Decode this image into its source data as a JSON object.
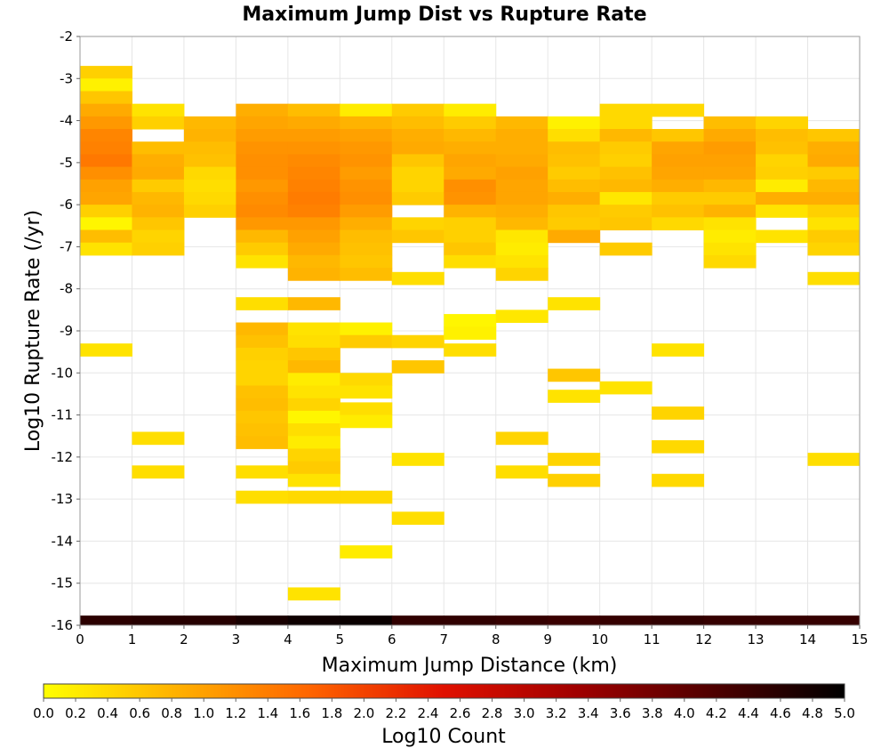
{
  "chart_data": {
    "type": "heatmap",
    "title": "Maximum Jump Dist vs Rupture Rate",
    "xlabel": "Maximum Jump Distance (km)",
    "ylabel": "Log10 Rupture Rate (/yr)",
    "xlim": [
      0,
      15
    ],
    "ylim": [
      -16,
      -2
    ],
    "x_ticks": [
      "0",
      "1",
      "2",
      "3",
      "4",
      "5",
      "6",
      "7",
      "8",
      "9",
      "10",
      "11",
      "12",
      "13",
      "14",
      "15"
    ],
    "y_ticks": [
      "-2",
      "-3",
      "-4",
      "-5",
      "-6",
      "-7",
      "-8",
      "-9",
      "-10",
      "-11",
      "-12",
      "-13",
      "-14",
      "-15",
      "-16"
    ],
    "x_bin_width": 1,
    "y_bin_height": 0.3,
    "grid": true,
    "colorbar": {
      "label": "Log10 Count",
      "range": [
        0,
        5
      ],
      "ticks": [
        "0.0",
        "0.2",
        "0.4",
        "0.6",
        "0.8",
        "1.0",
        "1.2",
        "1.4",
        "1.6",
        "1.8",
        "2.0",
        "2.2",
        "2.4",
        "2.6",
        "2.8",
        "3.0",
        "3.2",
        "3.4",
        "3.6",
        "3.8",
        "4.0",
        "4.2",
        "4.4",
        "4.6",
        "4.8",
        "5.0"
      ],
      "colors": [
        "#ffff00",
        "#ffb000",
        "#ff6400",
        "#e01000",
        "#a00000",
        "#500000",
        "#000000"
      ],
      "placement": "bottom"
    },
    "bottom_row": {
      "y_center": -15.92,
      "segments": [
        {
          "x": [
            0,
            1
          ],
          "value": 4.55
        },
        {
          "x": [
            1,
            2
          ],
          "value": 4.6
        },
        {
          "x": [
            2,
            3
          ],
          "value": 4.6
        },
        {
          "x": [
            3,
            4
          ],
          "value": 4.75
        },
        {
          "x": [
            4,
            5
          ],
          "value": 4.85
        },
        {
          "x": [
            5,
            6
          ],
          "value": 4.9
        },
        {
          "x": [
            6,
            7
          ],
          "value": 4.5
        },
        {
          "x": [
            7,
            8
          ],
          "value": 4.5
        },
        {
          "x": [
            8,
            9
          ],
          "value": 4.45
        },
        {
          "x": [
            9,
            10
          ],
          "value": 4.4
        },
        {
          "x": [
            10,
            11
          ],
          "value": 4.45
        },
        {
          "x": [
            11,
            12
          ],
          "value": 4.5
        },
        {
          "x": [
            12,
            13
          ],
          "value": 4.45
        },
        {
          "x": [
            13,
            14
          ],
          "value": 4.45
        },
        {
          "x": [
            14,
            15
          ],
          "value": 4.45
        }
      ]
    },
    "cells": [
      [
        0.5,
        -2.85,
        0.5
      ],
      [
        0.5,
        -3.15,
        0.15
      ],
      [
        0.5,
        -3.45,
        0.6
      ],
      [
        0.5,
        -3.75,
        0.9
      ],
      [
        0.5,
        -4.05,
        1.1
      ],
      [
        0.5,
        -4.35,
        1.3
      ],
      [
        0.5,
        -4.65,
        1.35
      ],
      [
        0.5,
        -4.95,
        1.45
      ],
      [
        0.5,
        -5.25,
        1.2
      ],
      [
        0.5,
        -5.55,
        1.0
      ],
      [
        0.5,
        -5.85,
        0.95
      ],
      [
        0.5,
        -6.15,
        0.5
      ],
      [
        0.5,
        -6.45,
        0.1
      ],
      [
        0.5,
        -6.75,
        0.7
      ],
      [
        0.5,
        -7.05,
        0.3
      ],
      [
        0.5,
        -9.45,
        0.3
      ],
      [
        1.5,
        -3.75,
        0.3
      ],
      [
        1.5,
        -4.05,
        0.5
      ],
      [
        1.5,
        -4.65,
        0.7
      ],
      [
        1.5,
        -4.95,
        0.85
      ],
      [
        1.5,
        -5.25,
        0.9
      ],
      [
        1.5,
        -5.55,
        0.55
      ],
      [
        1.5,
        -5.85,
        0.75
      ],
      [
        1.5,
        -6.15,
        0.8
      ],
      [
        1.5,
        -6.45,
        0.6
      ],
      [
        1.5,
        -6.75,
        0.45
      ],
      [
        1.5,
        -7.05,
        0.5
      ],
      [
        1.5,
        -11.55,
        0.35
      ],
      [
        1.5,
        -12.35,
        0.35
      ],
      [
        2.5,
        -4.05,
        0.75
      ],
      [
        2.5,
        -4.35,
        0.8
      ],
      [
        2.5,
        -4.65,
        0.7
      ],
      [
        2.5,
        -4.95,
        0.65
      ],
      [
        2.5,
        -5.25,
        0.4
      ],
      [
        2.5,
        -5.55,
        0.35
      ],
      [
        2.5,
        -5.85,
        0.4
      ],
      [
        2.5,
        -6.15,
        0.5
      ],
      [
        3.5,
        -3.75,
        0.85
      ],
      [
        3.5,
        -4.05,
        0.95
      ],
      [
        3.5,
        -4.35,
        1.05
      ],
      [
        3.5,
        -4.65,
        1.15
      ],
      [
        3.5,
        -4.95,
        1.2
      ],
      [
        3.5,
        -5.25,
        1.2
      ],
      [
        3.5,
        -5.55,
        1.1
      ],
      [
        3.5,
        -5.85,
        1.2
      ],
      [
        3.5,
        -6.15,
        1.25
      ],
      [
        3.5,
        -6.45,
        1.1
      ],
      [
        3.5,
        -6.75,
        0.75
      ],
      [
        3.5,
        -7.05,
        0.55
      ],
      [
        3.5,
        -7.35,
        0.3
      ],
      [
        3.5,
        -8.35,
        0.35
      ],
      [
        3.5,
        -8.95,
        0.75
      ],
      [
        3.5,
        -9.25,
        0.65
      ],
      [
        3.5,
        -9.55,
        0.5
      ],
      [
        3.5,
        -9.85,
        0.45
      ],
      [
        3.5,
        -10.15,
        0.45
      ],
      [
        3.5,
        -10.45,
        0.65
      ],
      [
        3.5,
        -10.75,
        0.7
      ],
      [
        3.5,
        -11.05,
        0.6
      ],
      [
        3.5,
        -11.35,
        0.65
      ],
      [
        3.5,
        -11.65,
        0.7
      ],
      [
        3.5,
        -12.35,
        0.35
      ],
      [
        3.5,
        -12.95,
        0.35
      ],
      [
        4.5,
        -3.75,
        0.7
      ],
      [
        4.5,
        -4.05,
        0.9
      ],
      [
        4.5,
        -4.35,
        1.05
      ],
      [
        4.5,
        -4.65,
        1.15
      ],
      [
        4.5,
        -4.95,
        1.25
      ],
      [
        4.5,
        -5.25,
        1.3
      ],
      [
        4.5,
        -5.55,
        1.35
      ],
      [
        4.5,
        -5.85,
        1.4
      ],
      [
        4.5,
        -6.15,
        1.35
      ],
      [
        4.5,
        -6.45,
        1.1
      ],
      [
        4.5,
        -6.75,
        1.0
      ],
      [
        4.5,
        -7.05,
        0.9
      ],
      [
        4.5,
        -7.35,
        0.75
      ],
      [
        4.5,
        -7.65,
        0.8
      ],
      [
        4.5,
        -8.35,
        0.75
      ],
      [
        4.5,
        -8.95,
        0.3
      ],
      [
        4.5,
        -9.25,
        0.35
      ],
      [
        4.5,
        -9.55,
        0.6
      ],
      [
        4.5,
        -9.85,
        0.75
      ],
      [
        4.5,
        -10.15,
        0.2
      ],
      [
        4.5,
        -10.45,
        0.3
      ],
      [
        4.5,
        -10.75,
        0.45
      ],
      [
        4.5,
        -11.05,
        0.1
      ],
      [
        4.5,
        -11.35,
        0.35
      ],
      [
        4.5,
        -11.65,
        0.2
      ],
      [
        4.5,
        -11.95,
        0.45
      ],
      [
        4.5,
        -12.25,
        0.55
      ],
      [
        4.5,
        -12.55,
        0.3
      ],
      [
        4.5,
        -12.95,
        0.4
      ],
      [
        4.5,
        -15.25,
        0.3
      ],
      [
        5.5,
        -3.75,
        0.2
      ],
      [
        5.5,
        -4.05,
        0.8
      ],
      [
        5.5,
        -4.35,
        1.0
      ],
      [
        5.5,
        -4.65,
        1.1
      ],
      [
        5.5,
        -4.95,
        1.15
      ],
      [
        5.5,
        -5.25,
        1.05
      ],
      [
        5.5,
        -5.55,
        1.15
      ],
      [
        5.5,
        -5.85,
        1.2
      ],
      [
        5.5,
        -6.15,
        1.05
      ],
      [
        5.5,
        -6.45,
        0.85
      ],
      [
        5.5,
        -6.75,
        0.7
      ],
      [
        5.5,
        -7.05,
        0.65
      ],
      [
        5.5,
        -7.35,
        0.6
      ],
      [
        5.5,
        -7.65,
        0.7
      ],
      [
        5.5,
        -8.95,
        0.15
      ],
      [
        5.5,
        -9.25,
        0.55
      ],
      [
        5.5,
        -10.15,
        0.4
      ],
      [
        5.5,
        -10.45,
        0.3
      ],
      [
        5.5,
        -10.85,
        0.35
      ],
      [
        5.5,
        -11.15,
        0.2
      ],
      [
        5.5,
        -12.95,
        0.4
      ],
      [
        5.5,
        -14.25,
        0.2
      ],
      [
        6.5,
        -3.75,
        0.55
      ],
      [
        6.5,
        -4.05,
        0.7
      ],
      [
        6.5,
        -4.35,
        0.85
      ],
      [
        6.5,
        -4.65,
        0.9
      ],
      [
        6.5,
        -4.95,
        0.6
      ],
      [
        6.5,
        -5.25,
        0.45
      ],
      [
        6.5,
        -5.55,
        0.45
      ],
      [
        6.5,
        -5.85,
        0.55
      ],
      [
        6.5,
        -6.45,
        0.45
      ],
      [
        6.5,
        -6.75,
        0.6
      ],
      [
        6.5,
        -7.75,
        0.35
      ],
      [
        6.5,
        -9.25,
        0.45
      ],
      [
        6.5,
        -9.85,
        0.6
      ],
      [
        6.5,
        -12.05,
        0.3
      ],
      [
        6.5,
        -13.45,
        0.35
      ],
      [
        7.5,
        -3.75,
        0.2
      ],
      [
        7.5,
        -4.05,
        0.55
      ],
      [
        7.5,
        -4.35,
        0.75
      ],
      [
        7.5,
        -4.65,
        0.85
      ],
      [
        7.5,
        -4.95,
        0.95
      ],
      [
        7.5,
        -5.25,
        0.9
      ],
      [
        7.5,
        -5.55,
        1.2
      ],
      [
        7.5,
        -5.85,
        1.15
      ],
      [
        7.5,
        -6.15,
        0.8
      ],
      [
        7.5,
        -6.45,
        0.5
      ],
      [
        7.5,
        -6.75,
        0.5
      ],
      [
        7.5,
        -7.05,
        0.6
      ],
      [
        7.5,
        -7.35,
        0.35
      ],
      [
        7.5,
        -8.75,
        0.1
      ],
      [
        7.5,
        -9.05,
        0.15
      ],
      [
        7.5,
        -9.45,
        0.35
      ],
      [
        8.5,
        -4.05,
        0.75
      ],
      [
        8.5,
        -4.35,
        0.85
      ],
      [
        8.5,
        -4.65,
        0.85
      ],
      [
        8.5,
        -4.95,
        0.9
      ],
      [
        8.5,
        -5.25,
        1.0
      ],
      [
        8.5,
        -5.55,
        0.95
      ],
      [
        8.5,
        -5.85,
        0.95
      ],
      [
        8.5,
        -6.15,
        0.85
      ],
      [
        8.5,
        -6.45,
        0.75
      ],
      [
        8.5,
        -6.75,
        0.25
      ],
      [
        8.5,
        -7.05,
        0.2
      ],
      [
        8.5,
        -7.35,
        0.3
      ],
      [
        8.5,
        -7.65,
        0.45
      ],
      [
        8.5,
        -8.65,
        0.25
      ],
      [
        8.5,
        -11.55,
        0.45
      ],
      [
        8.5,
        -12.35,
        0.35
      ],
      [
        9.5,
        -4.05,
        0.15
      ],
      [
        9.5,
        -4.35,
        0.35
      ],
      [
        9.5,
        -4.65,
        0.7
      ],
      [
        9.5,
        -4.95,
        0.65
      ],
      [
        9.5,
        -5.25,
        0.55
      ],
      [
        9.5,
        -5.55,
        0.7
      ],
      [
        9.5,
        -5.85,
        0.85
      ],
      [
        9.5,
        -6.15,
        0.6
      ],
      [
        9.5,
        -6.45,
        0.55
      ],
      [
        9.5,
        -6.75,
        0.9
      ],
      [
        9.5,
        -8.35,
        0.3
      ],
      [
        9.5,
        -10.05,
        0.6
      ],
      [
        9.5,
        -10.55,
        0.3
      ],
      [
        9.5,
        -12.05,
        0.45
      ],
      [
        9.5,
        -12.55,
        0.5
      ],
      [
        10.5,
        -3.75,
        0.4
      ],
      [
        10.5,
        -4.05,
        0.4
      ],
      [
        10.5,
        -4.35,
        0.75
      ],
      [
        10.5,
        -4.65,
        0.55
      ],
      [
        10.5,
        -4.95,
        0.5
      ],
      [
        10.5,
        -5.25,
        0.65
      ],
      [
        10.5,
        -5.55,
        0.75
      ],
      [
        10.5,
        -5.85,
        0.25
      ],
      [
        10.5,
        -6.15,
        0.55
      ],
      [
        10.5,
        -6.45,
        0.6
      ],
      [
        10.5,
        -7.05,
        0.55
      ],
      [
        10.5,
        -10.35,
        0.3
      ],
      [
        11.5,
        -3.75,
        0.4
      ],
      [
        11.5,
        -4.35,
        0.6
      ],
      [
        11.5,
        -4.65,
        0.95
      ],
      [
        11.5,
        -4.95,
        1.0
      ],
      [
        11.5,
        -5.25,
        0.95
      ],
      [
        11.5,
        -5.55,
        0.85
      ],
      [
        11.5,
        -5.85,
        0.55
      ],
      [
        11.5,
        -6.15,
        0.65
      ],
      [
        11.5,
        -6.45,
        0.4
      ],
      [
        11.5,
        -9.45,
        0.3
      ],
      [
        11.5,
        -10.95,
        0.45
      ],
      [
        11.5,
        -11.75,
        0.4
      ],
      [
        11.5,
        -12.55,
        0.4
      ],
      [
        12.5,
        -4.05,
        0.7
      ],
      [
        12.5,
        -4.35,
        0.9
      ],
      [
        12.5,
        -4.65,
        1.05
      ],
      [
        12.5,
        -4.95,
        1.0
      ],
      [
        12.5,
        -5.25,
        0.95
      ],
      [
        12.5,
        -5.55,
        0.75
      ],
      [
        12.5,
        -5.85,
        0.55
      ],
      [
        12.5,
        -6.15,
        0.8
      ],
      [
        12.5,
        -6.45,
        0.3
      ],
      [
        12.5,
        -6.75,
        0.2
      ],
      [
        12.5,
        -7.05,
        0.3
      ],
      [
        12.5,
        -7.35,
        0.4
      ],
      [
        13.5,
        -4.05,
        0.45
      ],
      [
        13.5,
        -4.35,
        0.7
      ],
      [
        13.5,
        -4.65,
        0.65
      ],
      [
        13.5,
        -4.95,
        0.45
      ],
      [
        13.5,
        -5.25,
        0.5
      ],
      [
        13.5,
        -5.55,
        0.2
      ],
      [
        13.5,
        -5.85,
        0.85
      ],
      [
        13.5,
        -6.15,
        0.3
      ],
      [
        13.5,
        -6.75,
        0.3
      ],
      [
        14.5,
        -4.35,
        0.6
      ],
      [
        14.5,
        -4.65,
        0.85
      ],
      [
        14.5,
        -4.95,
        0.9
      ],
      [
        14.5,
        -5.25,
        0.55
      ],
      [
        14.5,
        -5.55,
        0.75
      ],
      [
        14.5,
        -5.85,
        0.85
      ],
      [
        14.5,
        -6.15,
        0.5
      ],
      [
        14.5,
        -6.45,
        0.3
      ],
      [
        14.5,
        -6.75,
        0.55
      ],
      [
        14.5,
        -7.05,
        0.45
      ],
      [
        14.5,
        -7.75,
        0.35
      ],
      [
        14.5,
        -12.05,
        0.35
      ]
    ]
  }
}
